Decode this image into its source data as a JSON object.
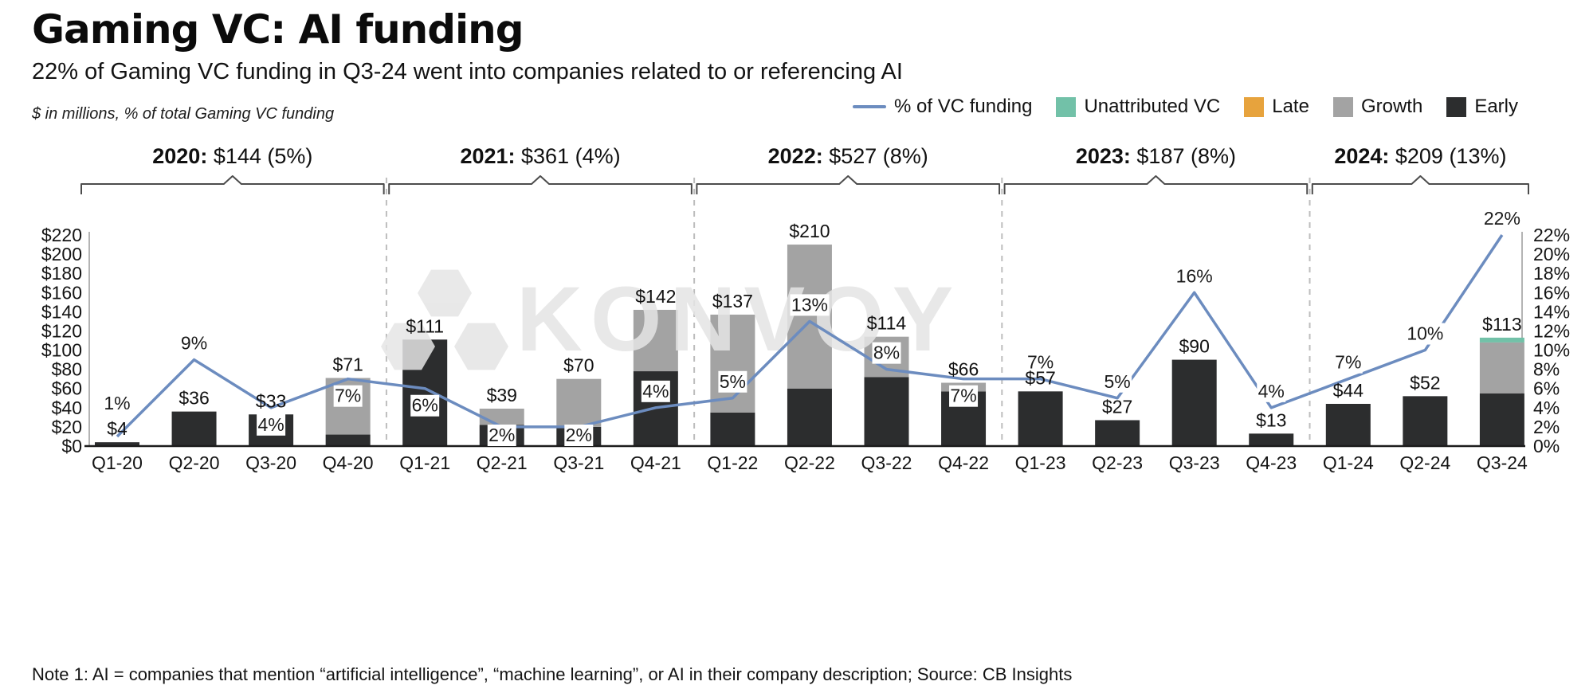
{
  "title": "Gaming VC: AI funding",
  "subtitle": "22% of Gaming VC funding in Q3-24 went into companies related to or referencing AI",
  "axis_note": "$ in millions, % of total Gaming VC funding",
  "footnote": "Note 1: AI = companies that mention “artificial intelligence”, “machine learning”, or AI in their company description; Source: CB Insights",
  "watermark": "KONVOY",
  "legend": [
    {
      "label": "% of VC funding",
      "type": "line",
      "color": "#6c8cbf"
    },
    {
      "label": "Unattributed VC",
      "type": "swatch",
      "color": "#72c1a8"
    },
    {
      "label": "Late",
      "type": "swatch",
      "color": "#e7a33d"
    },
    {
      "label": "Growth",
      "type": "swatch",
      "color": "#a3a3a3"
    },
    {
      "label": "Early",
      "type": "swatch",
      "color": "#2c2d2e"
    }
  ],
  "chart_data": {
    "type": "bar",
    "stacked": true,
    "overlay_line": true,
    "grid": false,
    "legend_position": "top-right",
    "categories": [
      "Q1-20",
      "Q2-20",
      "Q3-20",
      "Q4-20",
      "Q1-21",
      "Q2-21",
      "Q3-21",
      "Q4-21",
      "Q1-22",
      "Q2-22",
      "Q3-22",
      "Q4-22",
      "Q1-23",
      "Q2-23",
      "Q3-23",
      "Q4-23",
      "Q1-24",
      "Q2-24",
      "Q3-24"
    ],
    "series": [
      {
        "name": "Early",
        "color": "#2c2d2e",
        "values": [
          4,
          36,
          33,
          12,
          111,
          22,
          20,
          78,
          35,
          60,
          72,
          57,
          57,
          27,
          90,
          13,
          44,
          52,
          55
        ]
      },
      {
        "name": "Growth",
        "color": "#a3a3a3",
        "values": [
          0,
          0,
          0,
          59,
          0,
          17,
          50,
          64,
          102,
          150,
          42,
          9,
          0,
          0,
          0,
          0,
          0,
          0,
          53
        ]
      },
      {
        "name": "Late",
        "color": "#e7a33d",
        "values": [
          0,
          0,
          0,
          0,
          0,
          0,
          0,
          0,
          0,
          0,
          0,
          0,
          0,
          0,
          0,
          0,
          0,
          0,
          0
        ]
      },
      {
        "name": "Unattributed VC",
        "color": "#72c1a8",
        "values": [
          0,
          0,
          0,
          0,
          0,
          0,
          0,
          0,
          0,
          0,
          0,
          0,
          0,
          0,
          0,
          0,
          0,
          0,
          5
        ]
      }
    ],
    "totals": [
      4,
      36,
      33,
      71,
      111,
      39,
      70,
      142,
      137,
      210,
      114,
      66,
      57,
      27,
      90,
      13,
      44,
      52,
      113
    ],
    "line_series": {
      "name": "% of VC funding",
      "color": "#6c8cbf",
      "values": [
        1,
        9,
        4,
        7,
        6,
        2,
        2,
        4,
        5,
        13,
        8,
        7,
        7,
        5,
        16,
        4,
        7,
        10,
        22
      ]
    },
    "left_axis": {
      "min": 0,
      "max": 220,
      "step": 20,
      "tick_format": "$"
    },
    "right_axis": {
      "min": 0,
      "max": 22,
      "step": 2,
      "tick_format": "%"
    },
    "year_groups": [
      {
        "year": "2020:",
        "summary": "$144 (5%)",
        "start": 0,
        "end": 3
      },
      {
        "year": "2021:",
        "summary": "$361 (4%)",
        "start": 4,
        "end": 7
      },
      {
        "year": "2022:",
        "summary": "$527 (8%)",
        "start": 8,
        "end": 11
      },
      {
        "year": "2023:",
        "summary": "$187 (8%)",
        "start": 12,
        "end": 15
      },
      {
        "year": "2024:",
        "summary": "$209 (13%)",
        "start": 16,
        "end": 18
      }
    ],
    "pct_label_below": [
      2,
      3,
      4,
      5,
      6,
      11
    ]
  }
}
